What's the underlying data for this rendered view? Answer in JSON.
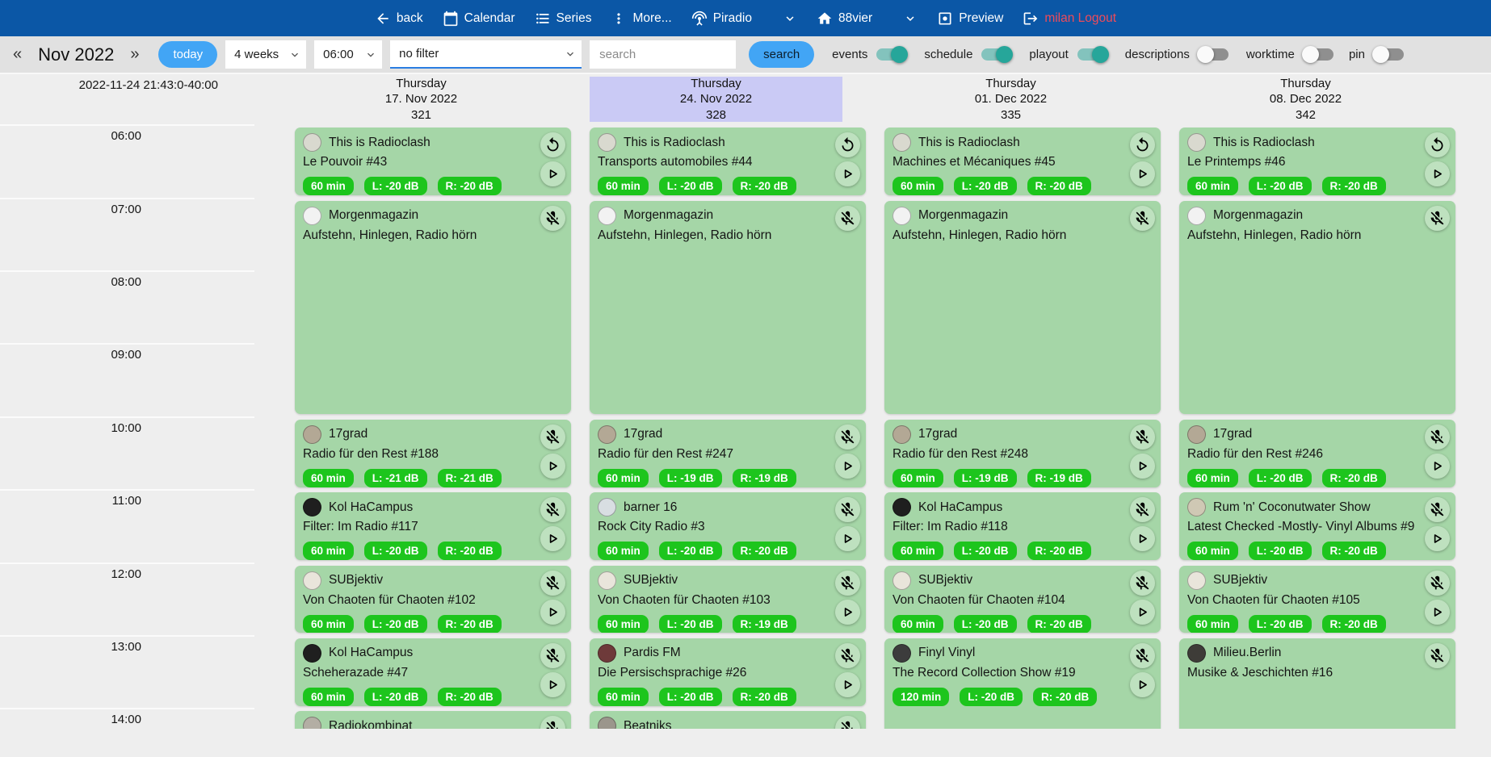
{
  "nav": {
    "back": "back",
    "calendar": "Calendar",
    "series": "Series",
    "more": "More...",
    "piradio": "Piradio",
    "station": "88vier",
    "preview": "Preview",
    "logout": "milan Logout"
  },
  "toolbar": {
    "prev": "«",
    "month": "Nov 2022",
    "next": "»",
    "today": "today",
    "range_select": "4 weeks",
    "time_select": "06:00",
    "filter_select": "no filter",
    "search_placeholder": "search",
    "search_button": "search",
    "toggles": [
      {
        "label": "events",
        "on": true
      },
      {
        "label": "schedule",
        "on": true
      },
      {
        "label": "playout",
        "on": true
      },
      {
        "label": "descriptions",
        "on": false
      },
      {
        "label": "worktime",
        "on": false
      },
      {
        "label": "pin",
        "on": false
      }
    ]
  },
  "axis": {
    "timestamp": "2022-11-24 21:43:0-40:00",
    "times": [
      "06:00",
      "07:00",
      "08:00",
      "09:00",
      "10:00",
      "11:00",
      "12:00",
      "13:00",
      "14:00"
    ]
  },
  "colors": {
    "navbar_blue": "#0b57a6",
    "accent_blue": "#42a5f5",
    "toggle_teal": "#26a69a",
    "card_green": "#a5d6a7",
    "badge_green": "#1dc51d",
    "highlight_lavender": "#cacaf5",
    "logout_red": "#ee4b5a"
  },
  "schedule": {
    "columns": [
      {
        "weekday": "Thursday",
        "date": "17. Nov 2022",
        "day_number": "321",
        "highlighted": false,
        "events": [
          {
            "show": "This is Radioclash",
            "episode": "Le Pouvoir #43",
            "start": "06:00",
            "duration_min": 60,
            "badges": [
              "60 min",
              "L: -20 dB",
              "R: -20 dB"
            ],
            "controls": [
              "replay",
              "play"
            ],
            "avatar_color": "#d9d9cf"
          },
          {
            "show": "Morgenmagazin",
            "episode": "Aufstehn, Hinlegen, Radio hörn",
            "start": "07:00",
            "duration_min": 180,
            "badges": [],
            "controls": [
              "mic-off"
            ],
            "avatar_color": "#f2f2f2"
          },
          {
            "show": "17grad",
            "episode": "Radio für den Rest #188",
            "start": "10:00",
            "duration_min": 60,
            "badges": [
              "60 min",
              "L: -21 dB",
              "R: -21 dB"
            ],
            "controls": [
              "mic-off",
              "play"
            ],
            "avatar_color": "#b3a895"
          },
          {
            "show": "Kol HaCampus",
            "episode": "Filter: Im Radio #117",
            "start": "11:00",
            "duration_min": 60,
            "badges": [
              "60 min",
              "L: -20 dB",
              "R: -20 dB"
            ],
            "controls": [
              "mic-off",
              "play"
            ],
            "avatar_color": "#1f1f1f"
          },
          {
            "show": "SUBjektiv",
            "episode": "Von Chaoten für Chaoten #102",
            "start": "12:00",
            "duration_min": 60,
            "badges": [
              "60 min",
              "L: -20 dB",
              "R: -20 dB"
            ],
            "controls": [
              "mic-off",
              "play"
            ],
            "avatar_color": "#e9e5db"
          },
          {
            "show": "Kol HaCampus",
            "episode": "Scheherazade #47",
            "start": "13:00",
            "duration_min": 60,
            "badges": [
              "60 min",
              "L: -20 dB",
              "R: -20 dB"
            ],
            "controls": [
              "mic-off",
              "play"
            ],
            "avatar_color": "#1f1f1f"
          },
          {
            "show": "Radiokombinat",
            "episode": "",
            "start": "14:00",
            "duration_min": 60,
            "badges": [],
            "controls": [
              "mic-off"
            ],
            "avatar_color": "#b3aea4"
          }
        ]
      },
      {
        "weekday": "Thursday",
        "date": "24. Nov 2022",
        "day_number": "328",
        "highlighted": true,
        "events": [
          {
            "show": "This is Radioclash",
            "episode": "Transports automobiles #44",
            "start": "06:00",
            "duration_min": 60,
            "badges": [
              "60 min",
              "L: -20 dB",
              "R: -20 dB"
            ],
            "controls": [
              "replay",
              "play"
            ],
            "avatar_color": "#d9d9cf"
          },
          {
            "show": "Morgenmagazin",
            "episode": "Aufstehn, Hinlegen, Radio hörn",
            "start": "07:00",
            "duration_min": 180,
            "badges": [],
            "controls": [
              "mic-off"
            ],
            "avatar_color": "#f2f2f2"
          },
          {
            "show": "17grad",
            "episode": "Radio für den Rest #247",
            "start": "10:00",
            "duration_min": 60,
            "badges": [
              "60 min",
              "L: -19 dB",
              "R: -19 dB"
            ],
            "controls": [
              "mic-off",
              "play"
            ],
            "avatar_color": "#b3a895"
          },
          {
            "show": "barner 16",
            "episode": "Rock City Radio #3",
            "start": "11:00",
            "duration_min": 60,
            "badges": [
              "60 min",
              "L: -20 dB",
              "R: -20 dB"
            ],
            "controls": [
              "mic-off",
              "play"
            ],
            "avatar_color": "#d8dee2"
          },
          {
            "show": "SUBjektiv",
            "episode": "Von Chaoten für Chaoten #103",
            "start": "12:00",
            "duration_min": 60,
            "badges": [
              "60 min",
              "L: -20 dB",
              "R: -19 dB"
            ],
            "controls": [
              "mic-off",
              "play"
            ],
            "avatar_color": "#e9e5db"
          },
          {
            "show": "Pardis FM",
            "episode": "Die Persischsprachige #26",
            "start": "13:00",
            "duration_min": 60,
            "badges": [
              "60 min",
              "L: -20 dB",
              "R: -20 dB"
            ],
            "controls": [
              "mic-off",
              "play"
            ],
            "avatar_color": "#6e3a3a"
          },
          {
            "show": "Beatniks",
            "episode": "",
            "start": "14:00",
            "duration_min": 60,
            "badges": [],
            "controls": [
              "mic-off"
            ],
            "avatar_color": "#9b968c"
          }
        ]
      },
      {
        "weekday": "Thursday",
        "date": "01. Dec 2022",
        "day_number": "335",
        "highlighted": false,
        "events": [
          {
            "show": "This is Radioclash",
            "episode": "Machines et Mécaniques #45",
            "start": "06:00",
            "duration_min": 60,
            "badges": [
              "60 min",
              "L: -20 dB",
              "R: -20 dB"
            ],
            "controls": [
              "replay",
              "play"
            ],
            "avatar_color": "#d9d9cf"
          },
          {
            "show": "Morgenmagazin",
            "episode": "Aufstehn, Hinlegen, Radio hörn",
            "start": "07:00",
            "duration_min": 180,
            "badges": [],
            "controls": [
              "mic-off"
            ],
            "avatar_color": "#f2f2f2"
          },
          {
            "show": "17grad",
            "episode": "Radio für den Rest #248",
            "start": "10:00",
            "duration_min": 60,
            "badges": [
              "60 min",
              "L: -19 dB",
              "R: -19 dB"
            ],
            "controls": [
              "mic-off",
              "play"
            ],
            "avatar_color": "#b3a895"
          },
          {
            "show": "Kol HaCampus",
            "episode": "Filter: Im Radio #118",
            "start": "11:00",
            "duration_min": 60,
            "badges": [
              "60 min",
              "L: -20 dB",
              "R: -20 dB"
            ],
            "controls": [
              "mic-off",
              "play"
            ],
            "avatar_color": "#1f1f1f"
          },
          {
            "show": "SUBjektiv",
            "episode": "Von Chaoten für Chaoten #104",
            "start": "12:00",
            "duration_min": 60,
            "badges": [
              "60 min",
              "L: -20 dB",
              "R: -20 dB"
            ],
            "controls": [
              "mic-off",
              "play"
            ],
            "avatar_color": "#e9e5db"
          },
          {
            "show": "Finyl Vinyl",
            "episode": "The Record Collection Show #19",
            "start": "13:00",
            "duration_min": 120,
            "badges": [
              "120 min",
              "L: -20 dB",
              "R: -20 dB"
            ],
            "controls": [
              "mic-off",
              "play"
            ],
            "avatar_color": "#3c3c3c"
          }
        ]
      },
      {
        "weekday": "Thursday",
        "date": "08. Dec 2022",
        "day_number": "342",
        "highlighted": false,
        "events": [
          {
            "show": "This is Radioclash",
            "episode": "Le Printemps #46",
            "start": "06:00",
            "duration_min": 60,
            "badges": [
              "60 min",
              "L: -20 dB",
              "R: -20 dB"
            ],
            "controls": [
              "replay",
              "play"
            ],
            "avatar_color": "#d9d9cf"
          },
          {
            "show": "Morgenmagazin",
            "episode": "Aufstehn, Hinlegen, Radio hörn",
            "start": "07:00",
            "duration_min": 180,
            "badges": [],
            "controls": [
              "mic-off"
            ],
            "avatar_color": "#f2f2f2"
          },
          {
            "show": "17grad",
            "episode": "Radio für den Rest #246",
            "start": "10:00",
            "duration_min": 60,
            "badges": [
              "60 min",
              "L: -20 dB",
              "R: -20 dB"
            ],
            "controls": [
              "mic-off",
              "play"
            ],
            "avatar_color": "#b3a895"
          },
          {
            "show": "Rum 'n' Coconutwater Show",
            "episode": "Latest Checked -Mostly- Vinyl Albums #9",
            "start": "11:00",
            "duration_min": 60,
            "badges": [
              "60 min",
              "L: -20 dB",
              "R: -20 dB"
            ],
            "controls": [
              "mic-off",
              "play"
            ],
            "avatar_color": "#cfc8b4"
          },
          {
            "show": "SUBjektiv",
            "episode": "Von Chaoten für Chaoten #105",
            "start": "12:00",
            "duration_min": 60,
            "badges": [
              "60 min",
              "L: -20 dB",
              "R: -20 dB"
            ],
            "controls": [
              "mic-off",
              "play"
            ],
            "avatar_color": "#e9e5db"
          },
          {
            "show": "Milieu.Berlin",
            "episode": "Musike & Jeschichten #16",
            "start": "13:00",
            "duration_min": 120,
            "badges": [],
            "controls": [
              "mic-off"
            ],
            "avatar_color": "#3e3c38"
          }
        ]
      }
    ]
  }
}
